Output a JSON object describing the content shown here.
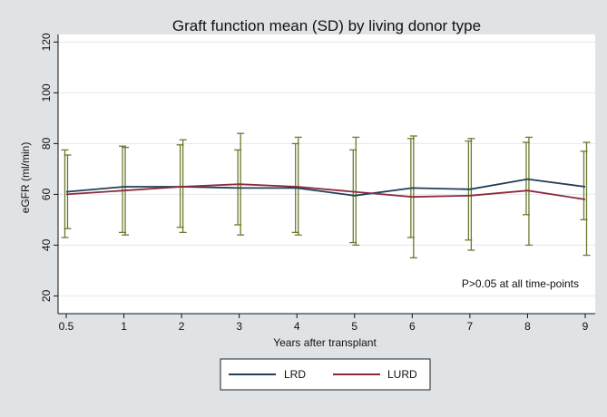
{
  "chart_data": {
    "type": "line",
    "title": "Graft function mean (SD) by living donor type",
    "xlabel": "Years after transplant",
    "ylabel": "eGFR (ml/min)",
    "x": [
      0.5,
      1,
      2,
      3,
      4,
      5,
      6,
      7,
      8,
      9
    ],
    "x_tick_labels": [
      "0.5",
      "1",
      "2",
      "3",
      "4",
      "5",
      "6",
      "7",
      "8",
      "9"
    ],
    "y_ticks": [
      20,
      40,
      60,
      80,
      100,
      120
    ],
    "ylim": [
      13,
      123
    ],
    "grid": "horizontal",
    "legend_position": "bottom",
    "annotation": "P>0.05 at all time-points",
    "error_bar_color": "#6b7a2e",
    "series": [
      {
        "name": "LRD",
        "color": "#1f3f5a",
        "values": [
          61,
          63,
          63,
          62.5,
          62.5,
          59.5,
          62.5,
          62,
          66,
          63
        ],
        "sd_low": [
          43,
          45,
          47,
          48,
          45,
          41,
          43,
          42,
          52,
          50
        ],
        "sd_high": [
          77.5,
          79,
          79.5,
          77.5,
          80,
          77.5,
          82,
          81,
          80.5,
          77
        ]
      },
      {
        "name": "LURD",
        "color": "#8c2a3c",
        "values": [
          60,
          61.5,
          63,
          64,
          63,
          61,
          59,
          59.5,
          61.5,
          58
        ],
        "sd_low": [
          46.5,
          44,
          45,
          44,
          44,
          40,
          35,
          38,
          40,
          36
        ],
        "sd_high": [
          75.5,
          78.5,
          81.5,
          84,
          82.5,
          82.5,
          83,
          82,
          82.5,
          80.5
        ]
      }
    ]
  }
}
